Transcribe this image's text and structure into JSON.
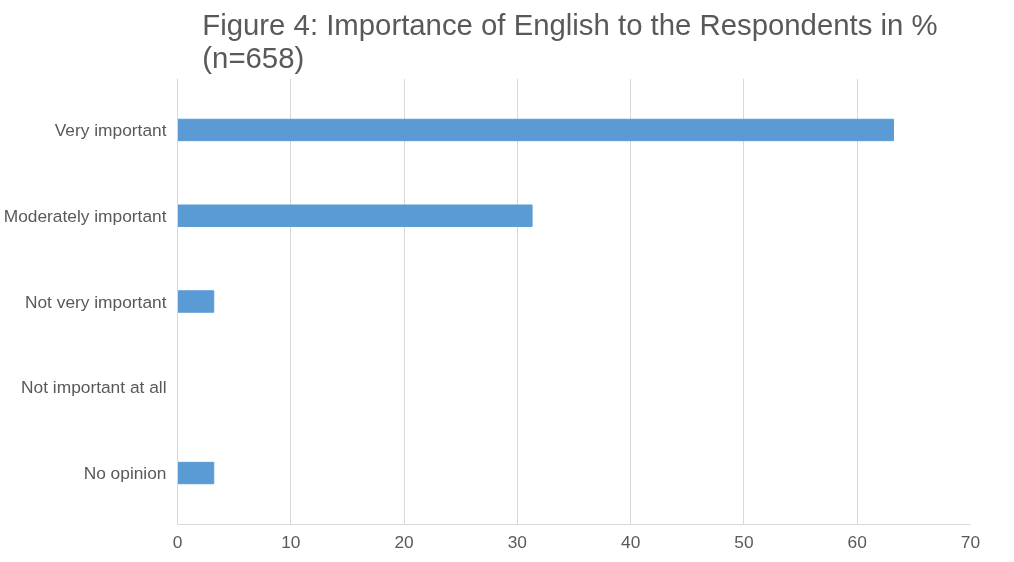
{
  "chart_data": {
    "type": "bar",
    "orientation": "horizontal",
    "title": "Figure 4: Importance of English to the Respondents  in %\n(n=658)",
    "categories": [
      "Very important",
      "Moderately important",
      "Not very important",
      "Not important at all",
      "No opinion"
    ],
    "values": [
      63.2,
      31.3,
      3.2,
      0,
      3.2
    ],
    "color": "#5b9bd5",
    "xlim": [
      0,
      70
    ],
    "xticks": [
      0,
      10,
      20,
      30,
      40,
      50,
      60,
      70
    ],
    "grid": "x"
  }
}
